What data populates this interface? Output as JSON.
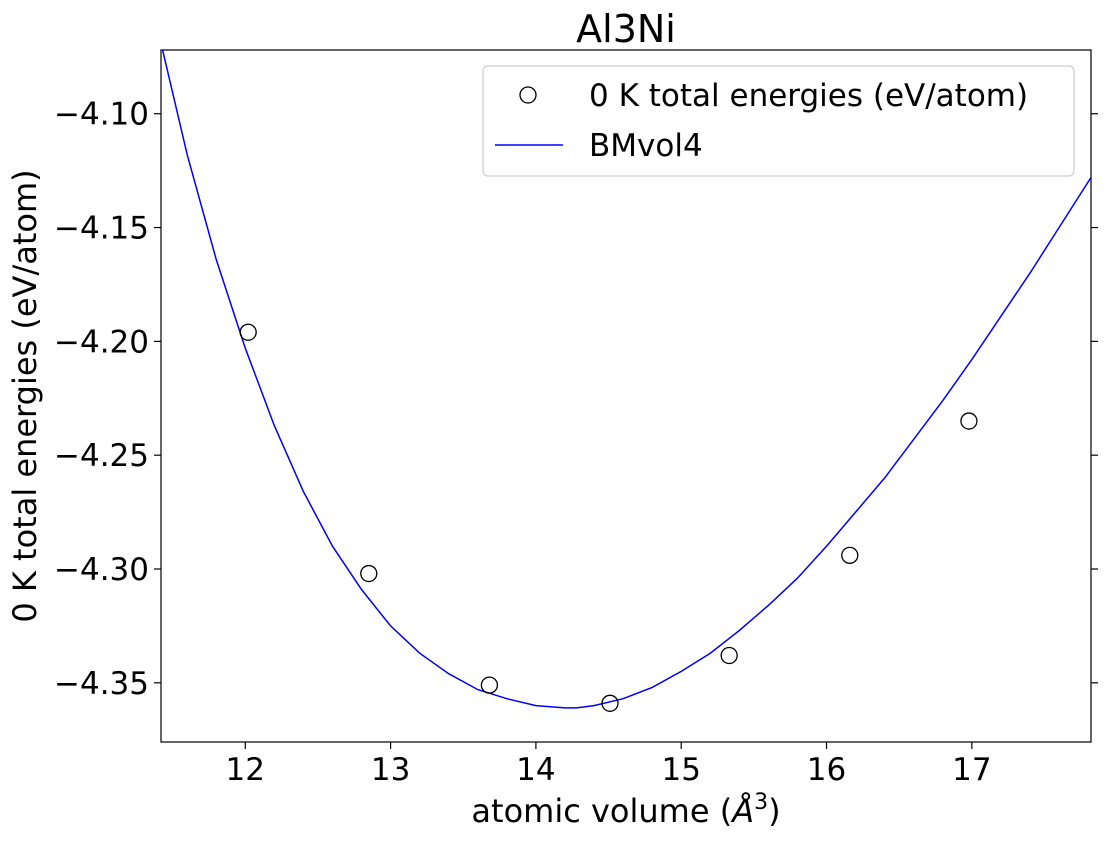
{
  "chart_data": {
    "type": "scatter",
    "title": "Al3Ni",
    "xlabel": "atomic volume (",
    "xlabel_unit_letter": "Å",
    "xlabel_unit_power": "3",
    "xlabel_suffix": ")",
    "ylabel": "0 K total energies (eV/atom)",
    "xlim": [
      11.42,
      17.82
    ],
    "ylim": [
      -4.376,
      -4.072
    ],
    "x_ticks": [
      12,
      13,
      14,
      15,
      16,
      17
    ],
    "x_tick_labels": [
      "12",
      "13",
      "14",
      "15",
      "16",
      "17"
    ],
    "y_ticks": [
      -4.1,
      -4.15,
      -4.2,
      -4.25,
      -4.3,
      -4.35
    ],
    "y_tick_labels": [
      "−4.10",
      "−4.15",
      "−4.20",
      "−4.25",
      "−4.30",
      "−4.35"
    ],
    "grid": false,
    "legend_position": "top-right",
    "series": [
      {
        "name": "0 K total energies (eV/atom)",
        "kind": "points",
        "marker": "open-circle",
        "color": "#000000",
        "x": [
          12.02,
          12.85,
          13.68,
          14.51,
          15.33,
          16.16,
          16.98
        ],
        "y": [
          -4.196,
          -4.302,
          -4.351,
          -4.359,
          -4.338,
          -4.294,
          -4.235
        ]
      },
      {
        "name": "BMvol4",
        "kind": "line",
        "color": "#0000ff",
        "x": [
          11.42,
          11.6,
          11.8,
          12.0,
          12.2,
          12.4,
          12.6,
          12.8,
          13.0,
          13.2,
          13.4,
          13.6,
          13.8,
          14.0,
          14.2,
          14.28,
          14.4,
          14.6,
          14.8,
          15.0,
          15.2,
          15.4,
          15.6,
          15.8,
          16.0,
          16.2,
          16.4,
          16.6,
          16.8,
          17.0,
          17.2,
          17.4,
          17.6,
          17.82
        ],
        "y": [
          -4.069,
          -4.118,
          -4.164,
          -4.203,
          -4.237,
          -4.266,
          -4.29,
          -4.309,
          -4.325,
          -4.337,
          -4.346,
          -4.353,
          -4.357,
          -4.36,
          -4.361,
          -4.361,
          -4.36,
          -4.357,
          -4.352,
          -4.345,
          -4.337,
          -4.327,
          -4.316,
          -4.304,
          -4.29,
          -4.275,
          -4.26,
          -4.243,
          -4.226,
          -4.208,
          -4.189,
          -4.17,
          -4.15,
          -4.128
        ]
      }
    ]
  }
}
